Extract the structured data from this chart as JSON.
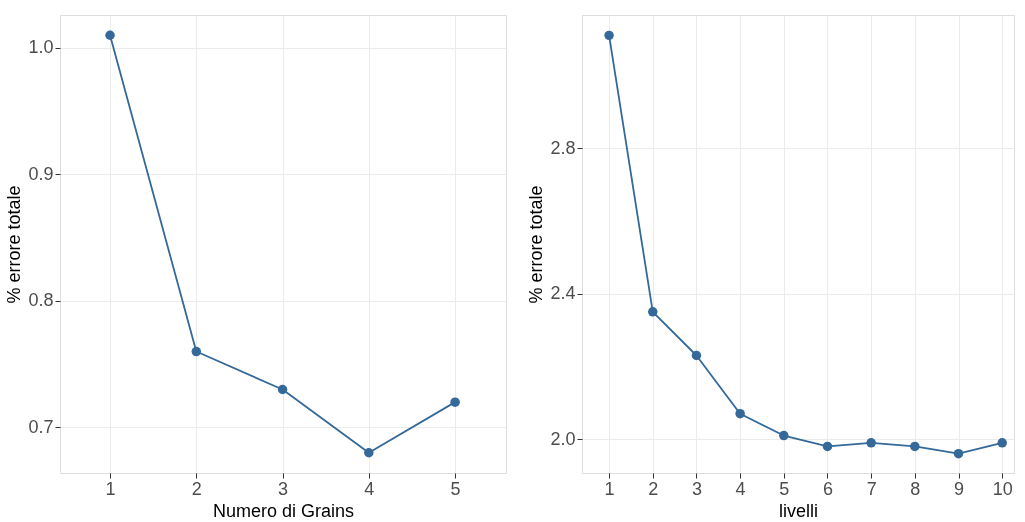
{
  "chart_data": [
    {
      "type": "line",
      "xlabel": "Numero di Grains",
      "ylabel": "% errore totale",
      "x": [
        1,
        2,
        3,
        4,
        5
      ],
      "marker": "circle",
      "grid": true,
      "xlim": [
        0.42,
        5.59
      ],
      "xticks": [
        1,
        2,
        3,
        4,
        5
      ],
      "ylim": [
        0.664,
        1.026
      ],
      "yticks": [
        {
          "value": 0.7,
          "label": "0.7"
        },
        {
          "value": 0.8,
          "label": "0.8"
        },
        {
          "value": 0.9,
          "label": "0.9"
        },
        {
          "value": 1.0,
          "label": "1.0"
        }
      ],
      "series": [
        {
          "color": "#34699a",
          "values": [
            1.01,
            0.76,
            0.73,
            0.68,
            0.72
          ]
        }
      ]
    },
    {
      "type": "line",
      "xlabel": "livelli",
      "ylabel": "% errore totale",
      "x": [
        1,
        2,
        3,
        4,
        5,
        6,
        7,
        8,
        9,
        10
      ],
      "marker": "circle",
      "grid": true,
      "xlim": [
        0.38,
        10.27
      ],
      "xticks": [
        1,
        2,
        3,
        4,
        5,
        6,
        7,
        8,
        9,
        10
      ],
      "ylim": [
        1.907,
        3.166
      ],
      "yticks": [
        {
          "value": 2.0,
          "label": "2.0"
        },
        {
          "value": 2.4,
          "label": "2.4"
        },
        {
          "value": 2.8,
          "label": "2.8"
        }
      ],
      "series": [
        {
          "color": "#34699a",
          "values": [
            3.11,
            2.35,
            2.23,
            2.07,
            2.01,
            1.98,
            1.99,
            1.98,
            1.96,
            1.99
          ]
        }
      ]
    }
  ]
}
